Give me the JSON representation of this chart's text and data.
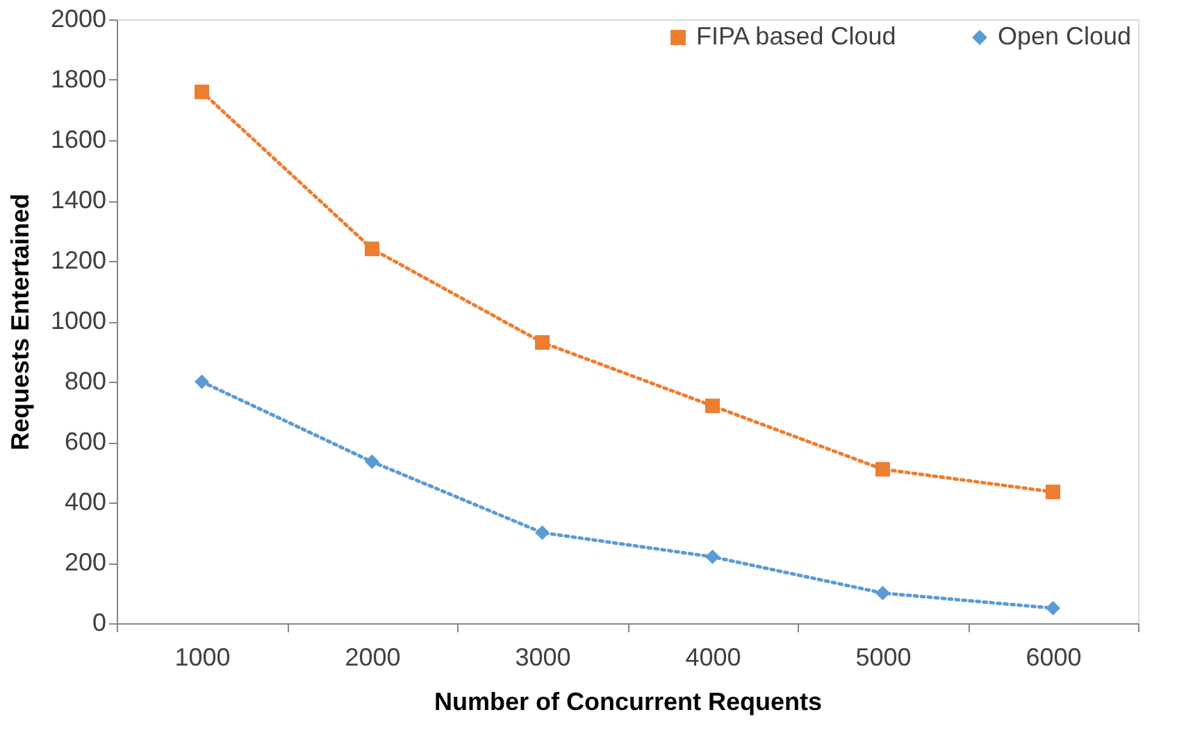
{
  "chart_data": {
    "type": "line",
    "xlabel": "Number of Concurrent Requents",
    "ylabel": "Requests Entertained",
    "categories": [
      "1000",
      "2000",
      "3000",
      "4000",
      "5000",
      "6000"
    ],
    "series": [
      {
        "name": "FIPA based Cloud",
        "color": "#ed7d31",
        "marker": "square",
        "values": [
          1760,
          1240,
          930,
          720,
          510,
          435
        ]
      },
      {
        "name": "Open Cloud",
        "color": "#5b9bd5",
        "marker": "diamond",
        "values": [
          800,
          535,
          300,
          220,
          100,
          50
        ]
      }
    ],
    "ylim": [
      0,
      2000
    ],
    "yticks": [
      0,
      200,
      400,
      600,
      800,
      1000,
      1200,
      1400,
      1600,
      1800,
      2000
    ],
    "grid": false,
    "legend": "top right",
    "line_style": "dotted"
  }
}
